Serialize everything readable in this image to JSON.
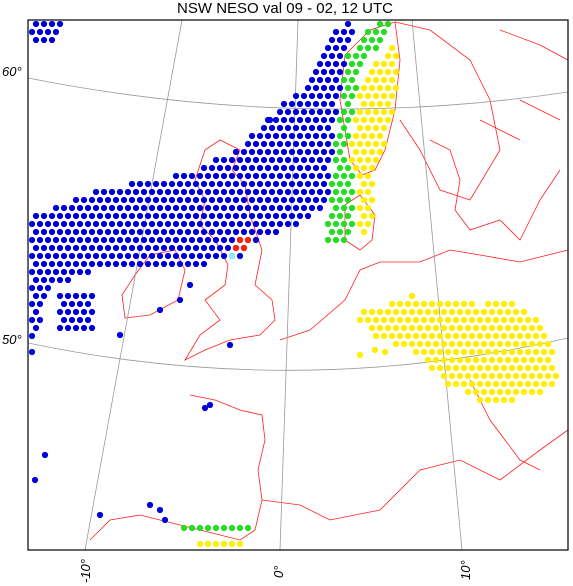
{
  "title": "NSW NESO val 09 - 02, 12 UTC",
  "latitude_labels": [
    "60°",
    "50°"
  ],
  "longitude_labels": [
    "-10°",
    "0°",
    "10°"
  ]
}
